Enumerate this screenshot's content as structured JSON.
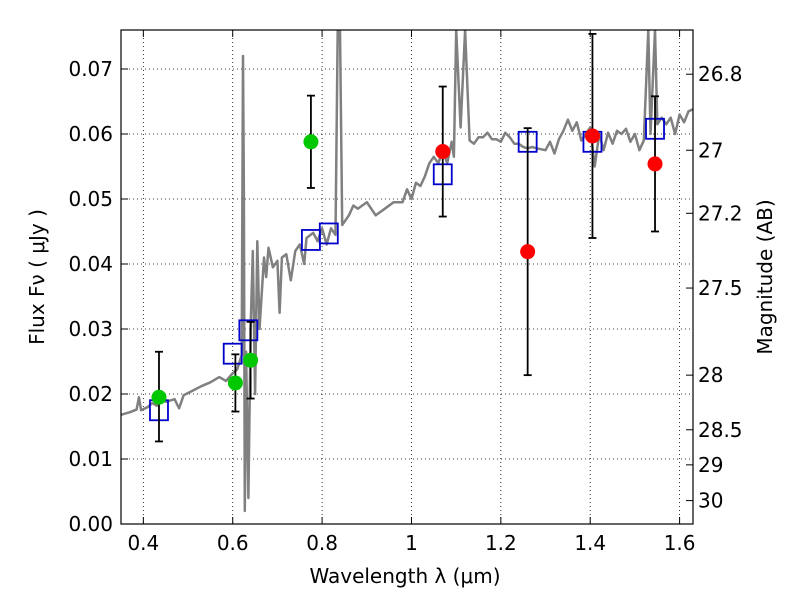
{
  "chart_data": {
    "type": "scatter",
    "xlabel": "Wavelength  λ (μm)",
    "ylabel": "Flux  Fν  ( μJy )",
    "y2label": "Magnitude (AB)",
    "xlim": [
      0.35,
      1.63
    ],
    "ylim": [
      0.0,
      0.076
    ],
    "grid": true,
    "x_ticks": [
      {
        "value": 0.4,
        "label": "0.4"
      },
      {
        "value": 0.6,
        "label": "0.6"
      },
      {
        "value": 0.8,
        "label": "0.8"
      },
      {
        "value": 1.0,
        "label": "1"
      },
      {
        "value": 1.2,
        "label": "1.2"
      },
      {
        "value": 1.4,
        "label": "1.4"
      },
      {
        "value": 1.6,
        "label": "1.6"
      }
    ],
    "y_ticks": [
      {
        "value": 0.0,
        "label": "0.00"
      },
      {
        "value": 0.01,
        "label": "0.01"
      },
      {
        "value": 0.02,
        "label": "0.02"
      },
      {
        "value": 0.03,
        "label": "0.03"
      },
      {
        "value": 0.04,
        "label": "0.04"
      },
      {
        "value": 0.05,
        "label": "0.05"
      },
      {
        "value": 0.06,
        "label": "0.06"
      },
      {
        "value": 0.07,
        "label": "0.07"
      }
    ],
    "y2_ticks": [
      {
        "flux": 0.0692,
        "label": "26.8"
      },
      {
        "flux": 0.0575,
        "label": "27"
      },
      {
        "flux": 0.0478,
        "label": "27.2"
      },
      {
        "flux": 0.0363,
        "label": "27.5"
      },
      {
        "flux": 0.0229,
        "label": "28"
      },
      {
        "flux": 0.0145,
        "label": "28.5"
      },
      {
        "flux": 0.0091,
        "label": "29"
      },
      {
        "flux": 0.0036,
        "label": "30"
      }
    ],
    "model_spectrum": {
      "color": "#808080",
      "points": [
        [
          0.35,
          0.0168
        ],
        [
          0.37,
          0.0172
        ],
        [
          0.385,
          0.0176
        ],
        [
          0.39,
          0.0195
        ],
        [
          0.395,
          0.0175
        ],
        [
          0.41,
          0.018
        ],
        [
          0.42,
          0.0186
        ],
        [
          0.43,
          0.0182
        ],
        [
          0.44,
          0.0197
        ],
        [
          0.45,
          0.0188
        ],
        [
          0.47,
          0.0192
        ],
        [
          0.48,
          0.0178
        ],
        [
          0.49,
          0.0198
        ],
        [
          0.51,
          0.0205
        ],
        [
          0.53,
          0.0212
        ],
        [
          0.55,
          0.0218
        ],
        [
          0.57,
          0.0226
        ],
        [
          0.585,
          0.022
        ],
        [
          0.6,
          0.0232
        ],
        [
          0.61,
          0.0238
        ],
        [
          0.62,
          0.026
        ],
        [
          0.623,
          0.072
        ],
        [
          0.625,
          0.05
        ],
        [
          0.627,
          0.002
        ],
        [
          0.63,
          0.0265
        ],
        [
          0.635,
          0.004
        ],
        [
          0.64,
          0.03
        ],
        [
          0.645,
          0.042
        ],
        [
          0.65,
          0.02
        ],
        [
          0.655,
          0.0435
        ],
        [
          0.66,
          0.03
        ],
        [
          0.67,
          0.041
        ],
        [
          0.675,
          0.038
        ],
        [
          0.68,
          0.0425
        ],
        [
          0.69,
          0.0395
        ],
        [
          0.7,
          0.0405
        ],
        [
          0.705,
          0.0325
        ],
        [
          0.71,
          0.041
        ],
        [
          0.72,
          0.0415
        ],
        [
          0.73,
          0.0375
        ],
        [
          0.74,
          0.042
        ],
        [
          0.75,
          0.043
        ],
        [
          0.76,
          0.04
        ],
        [
          0.765,
          0.044
        ],
        [
          0.78,
          0.0448
        ],
        [
          0.79,
          0.0435
        ],
        [
          0.8,
          0.0455
        ],
        [
          0.81,
          0.043
        ],
        [
          0.82,
          0.0455
        ],
        [
          0.83,
          0.0445
        ],
        [
          0.835,
          0.076
        ],
        [
          0.84,
          0.076
        ],
        [
          0.845,
          0.046
        ],
        [
          0.86,
          0.0475
        ],
        [
          0.87,
          0.049
        ],
        [
          0.88,
          0.0485
        ],
        [
          0.9,
          0.0495
        ],
        [
          0.92,
          0.0475
        ],
        [
          0.94,
          0.0485
        ],
        [
          0.96,
          0.0495
        ],
        [
          0.98,
          0.0495
        ],
        [
          0.99,
          0.0515
        ],
        [
          1.0,
          0.05
        ],
        [
          1.01,
          0.0525
        ],
        [
          1.02,
          0.052
        ],
        [
          1.03,
          0.0535
        ],
        [
          1.04,
          0.0555
        ],
        [
          1.05,
          0.0565
        ],
        [
          1.06,
          0.0555
        ],
        [
          1.07,
          0.0575
        ],
        [
          1.08,
          0.0555
        ],
        [
          1.09,
          0.0588
        ],
        [
          1.095,
          0.0565
        ],
        [
          1.1,
          0.076
        ],
        [
          1.11,
          0.061
        ],
        [
          1.12,
          0.076
        ],
        [
          1.13,
          0.059
        ],
        [
          1.14,
          0.0585
        ],
        [
          1.15,
          0.0595
        ],
        [
          1.16,
          0.0595
        ],
        [
          1.17,
          0.0602
        ],
        [
          1.18,
          0.0592
        ],
        [
          1.19,
          0.0592
        ],
        [
          1.2,
          0.0588
        ],
        [
          1.21,
          0.0602
        ],
        [
          1.22,
          0.0595
        ],
        [
          1.23,
          0.0585
        ],
        [
          1.24,
          0.0585
        ],
        [
          1.25,
          0.058
        ],
        [
          1.26,
          0.0578
        ],
        [
          1.27,
          0.058
        ],
        [
          1.28,
          0.0578
        ],
        [
          1.3,
          0.0575
        ],
        [
          1.31,
          0.0588
        ],
        [
          1.32,
          0.057
        ],
        [
          1.33,
          0.0592
        ],
        [
          1.34,
          0.0605
        ],
        [
          1.35,
          0.0622
        ],
        [
          1.36,
          0.0605
        ],
        [
          1.37,
          0.0618
        ],
        [
          1.38,
          0.059
        ],
        [
          1.39,
          0.06
        ],
        [
          1.4,
          0.061
        ],
        [
          1.41,
          0.055
        ],
        [
          1.42,
          0.06
        ],
        [
          1.43,
          0.0575
        ],
        [
          1.44,
          0.0602
        ],
        [
          1.45,
          0.0585
        ],
        [
          1.46,
          0.0605
        ],
        [
          1.47,
          0.06
        ],
        [
          1.48,
          0.0608
        ],
        [
          1.49,
          0.0588
        ],
        [
          1.5,
          0.06
        ],
        [
          1.51,
          0.0575
        ],
        [
          1.52,
          0.059
        ],
        [
          1.53,
          0.076
        ],
        [
          1.535,
          0.06
        ],
        [
          1.545,
          0.076
        ],
        [
          1.55,
          0.0615
        ],
        [
          1.56,
          0.0625
        ],
        [
          1.57,
          0.0615
        ],
        [
          1.58,
          0.0625
        ],
        [
          1.59,
          0.06
        ],
        [
          1.6,
          0.063
        ],
        [
          1.61,
          0.0618
        ],
        [
          1.62,
          0.0635
        ],
        [
          1.63,
          0.0638
        ]
      ]
    },
    "model_boxes": {
      "color": "#0000cc",
      "points": [
        {
          "x": 0.435,
          "y": 0.0175
        },
        {
          "x": 0.6,
          "y": 0.0262
        },
        {
          "x": 0.635,
          "y": 0.0298
        },
        {
          "x": 0.775,
          "y": 0.0437
        },
        {
          "x": 0.815,
          "y": 0.0447
        },
        {
          "x": 1.07,
          "y": 0.0538
        },
        {
          "x": 1.26,
          "y": 0.0588
        },
        {
          "x": 1.405,
          "y": 0.0588
        },
        {
          "x": 1.545,
          "y": 0.0608
        }
      ]
    },
    "series": [
      {
        "color": "#00c800",
        "points": [
          {
            "x": 0.435,
            "y": 0.0195,
            "lo": 0.0127,
            "hi": 0.0265
          },
          {
            "x": 0.606,
            "y": 0.0217,
            "lo": 0.0173,
            "hi": 0.0261
          },
          {
            "x": 0.64,
            "y": 0.0252,
            "lo": 0.0193,
            "hi": 0.0311
          },
          {
            "x": 0.775,
            "y": 0.0588,
            "lo": 0.0517,
            "hi": 0.0659
          }
        ]
      },
      {
        "color": "#ff0000",
        "points": [
          {
            "x": 1.07,
            "y": 0.0573,
            "lo": 0.0473,
            "hi": 0.0673
          },
          {
            "x": 1.26,
            "y": 0.0419,
            "lo": 0.0229,
            "hi": 0.0609
          },
          {
            "x": 1.405,
            "y": 0.0597,
            "lo": 0.044,
            "hi": 0.0754
          },
          {
            "x": 1.545,
            "y": 0.0554,
            "lo": 0.045,
            "hi": 0.0658
          }
        ]
      }
    ]
  }
}
